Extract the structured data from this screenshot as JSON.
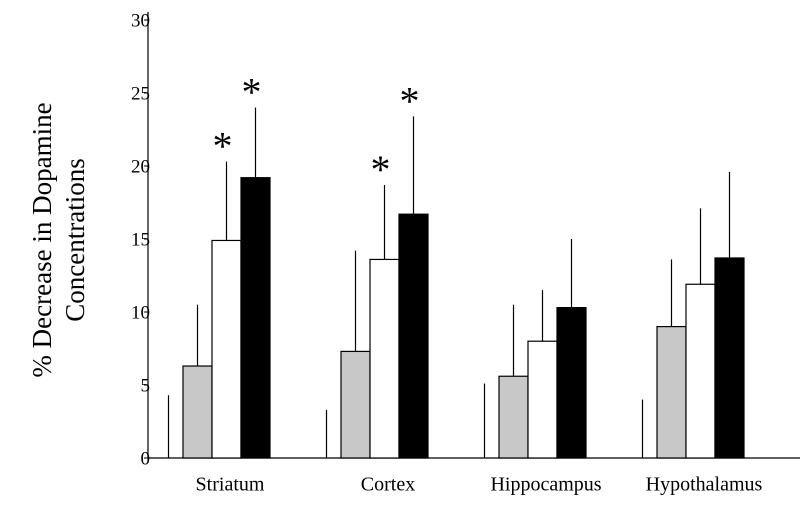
{
  "chart_data": {
    "type": "bar",
    "ylabel": [
      "% Decrease in Dopamine",
      "Concentrations"
    ],
    "categories": [
      "Striatum",
      "Cortex",
      "Hippocampus",
      "Hypothalamus"
    ],
    "ylim": [
      0,
      30
    ],
    "yticks": [
      0,
      5,
      10,
      15,
      20,
      25,
      30
    ],
    "series": [
      {
        "color": "#ffffff",
        "values": [
          0,
          0,
          0,
          0
        ],
        "errors": [
          4.3,
          3.3,
          5.1,
          4.0
        ]
      },
      {
        "color": "#c8c8c8",
        "values": [
          6.3,
          7.3,
          5.6,
          9.0
        ],
        "errors": [
          4.2,
          6.9,
          4.9,
          4.6
        ]
      },
      {
        "color": "#ffffff",
        "values": [
          14.9,
          13.6,
          8.0,
          11.9
        ],
        "errors": [
          5.4,
          5.1,
          3.5,
          5.2
        ],
        "markers": [
          "*",
          "*",
          null,
          null
        ]
      },
      {
        "color": "#000000",
        "values": [
          19.2,
          16.7,
          10.3,
          13.7
        ],
        "errors": [
          4.8,
          6.7,
          4.7,
          5.9
        ],
        "markers": [
          "*",
          "*",
          null,
          null
        ]
      }
    ]
  }
}
